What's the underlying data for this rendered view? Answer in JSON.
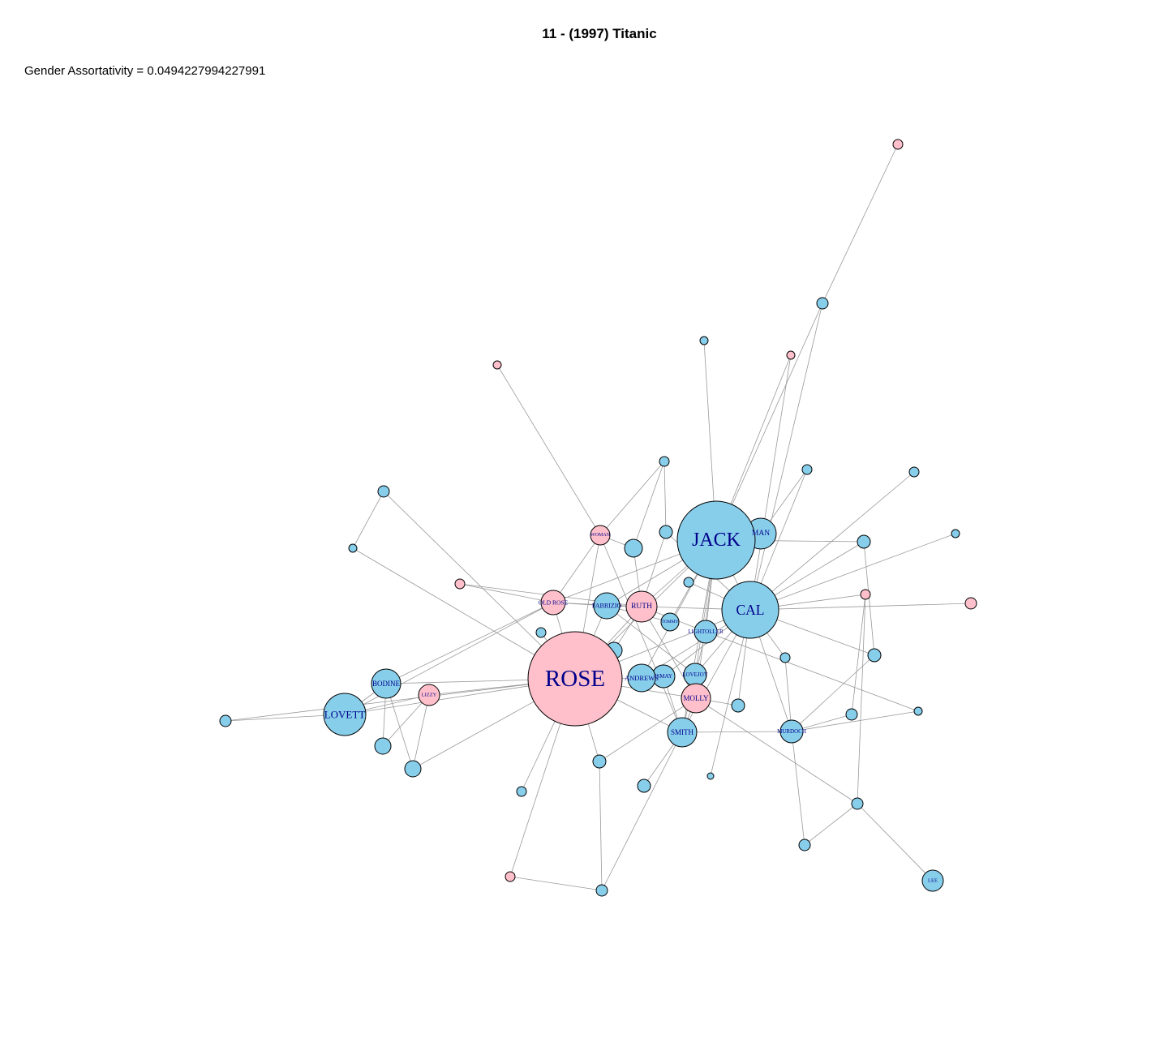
{
  "title": "11 - (1997) Titanic",
  "subtitle": "Gender Assortativity = 0.0494227994227991",
  "nodes": [
    {
      "label": "JACK"
    },
    {
      "label": "ROSE"
    },
    {
      "label": "CAL"
    },
    {
      "label": "LOVETT"
    },
    {
      "label": "BODINE"
    },
    {
      "label": "MAN"
    },
    {
      "label": "RUTH"
    },
    {
      "label": "MOLLY"
    },
    {
      "label": "SMITH"
    },
    {
      "label": "ANDREWS"
    },
    {
      "label": "ISMAY"
    },
    {
      "label": "LOVEJOY"
    },
    {
      "label": "LIGHTOLLER"
    },
    {
      "label": "FABRIZIO"
    },
    {
      "label": "OLD ROSE"
    },
    {
      "label": "MURDOCH"
    },
    {
      "label": "LIZZY"
    },
    {
      "label": "TOMMY"
    },
    {
      "label": "WOMAN"
    },
    {
      "label": "LEE"
    }
  ]
}
